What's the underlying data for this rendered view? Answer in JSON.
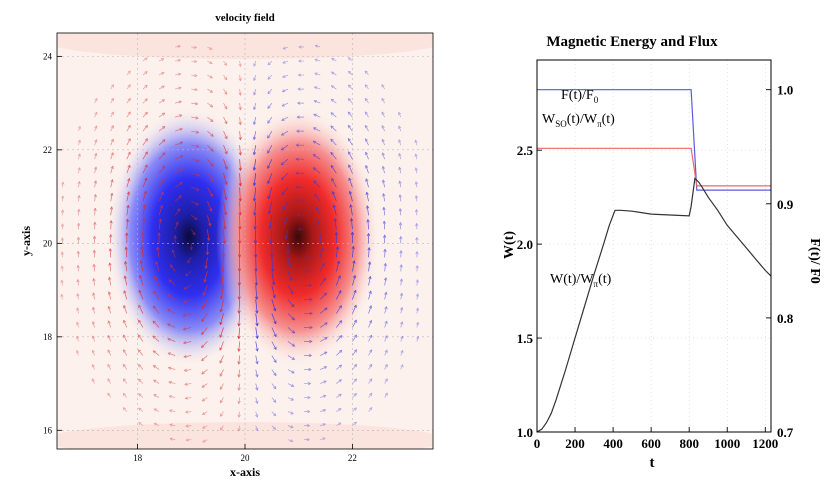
{
  "colors": {
    "background": "#ffffff",
    "axis": "#000000",
    "grid": "#b8b8b8",
    "positive_lobe": "#e8202a",
    "negative_lobe": "#2a2ae8",
    "flux_line": "#5a5ae0",
    "w_so_line": "#e86868",
    "w_line": "#333333"
  },
  "chart_data": [
    {
      "type": "heatmap",
      "title": "velocity field",
      "xlabel": "x-axis",
      "ylabel": "y-axis",
      "xlim": [
        16.5,
        23.5
      ],
      "ylim": [
        15.6,
        24.5
      ],
      "xticks": [
        18,
        20,
        22
      ],
      "yticks": [
        16,
        18,
        20,
        22,
        24
      ],
      "field": {
        "description_values": "two counter-rotating vortices with opposite-sign scalar background",
        "negative_center": [
          19.0,
          20.0
        ],
        "positive_center": [
          21.0,
          20.0
        ],
        "semi_axes": [
          1.2,
          2.2
        ],
        "arrow_grid_step": 0.3
      }
    },
    {
      "type": "line",
      "title": "Magnetic Energy and Flux",
      "xlabel": "t",
      "ylabel": "W(t)",
      "ylabel_right": "F(t)/ F0",
      "xlim": [
        0,
        1230
      ],
      "ylim": [
        1.0,
        2.98
      ],
      "ylim_right": [
        0.7,
        1.026
      ],
      "xticks": [
        0,
        200,
        400,
        600,
        800,
        1000,
        1200
      ],
      "yticks": [
        1.0,
        1.5,
        2.0,
        2.5
      ],
      "yticks_right": [
        0.7,
        0.8,
        0.9,
        1.0
      ],
      "series": [
        {
          "name": "F(t)/F0",
          "axis": "right",
          "x": [
            0,
            810,
            840,
            1230
          ],
          "y": [
            1.0,
            1.0,
            0.912,
            0.912
          ]
        },
        {
          "name": "Wso(t)/Wπ(t)",
          "axis": "left",
          "x": [
            0,
            810,
            840,
            1230
          ],
          "y": [
            2.51,
            2.51,
            2.31,
            2.31
          ]
        },
        {
          "name": "W(t)/Wπ(t)",
          "axis": "left",
          "x": [
            0,
            25,
            50,
            75,
            100,
            150,
            200,
            250,
            300,
            350,
            380,
            410,
            440,
            500,
            600,
            700,
            800,
            810,
            830,
            850,
            870,
            900,
            950,
            1000,
            1050,
            1100,
            1150,
            1200,
            1230
          ],
          "y": [
            1.0,
            1.015,
            1.05,
            1.1,
            1.17,
            1.33,
            1.5,
            1.67,
            1.84,
            2.0,
            2.1,
            2.18,
            2.18,
            2.175,
            2.16,
            2.155,
            2.15,
            2.2,
            2.35,
            2.33,
            2.3,
            2.25,
            2.18,
            2.1,
            2.04,
            1.98,
            1.92,
            1.86,
            1.83
          ]
        }
      ],
      "annotations": [
        {
          "main": "F(t)/F",
          "sub": "0"
        },
        {
          "main": "W",
          "sub": "SO",
          "main2": "(t)/W",
          "sub2": "π",
          "tail": "(t)"
        },
        {
          "main": "W(t)/W",
          "sub": "π",
          "tail": "(t)"
        }
      ]
    }
  ]
}
